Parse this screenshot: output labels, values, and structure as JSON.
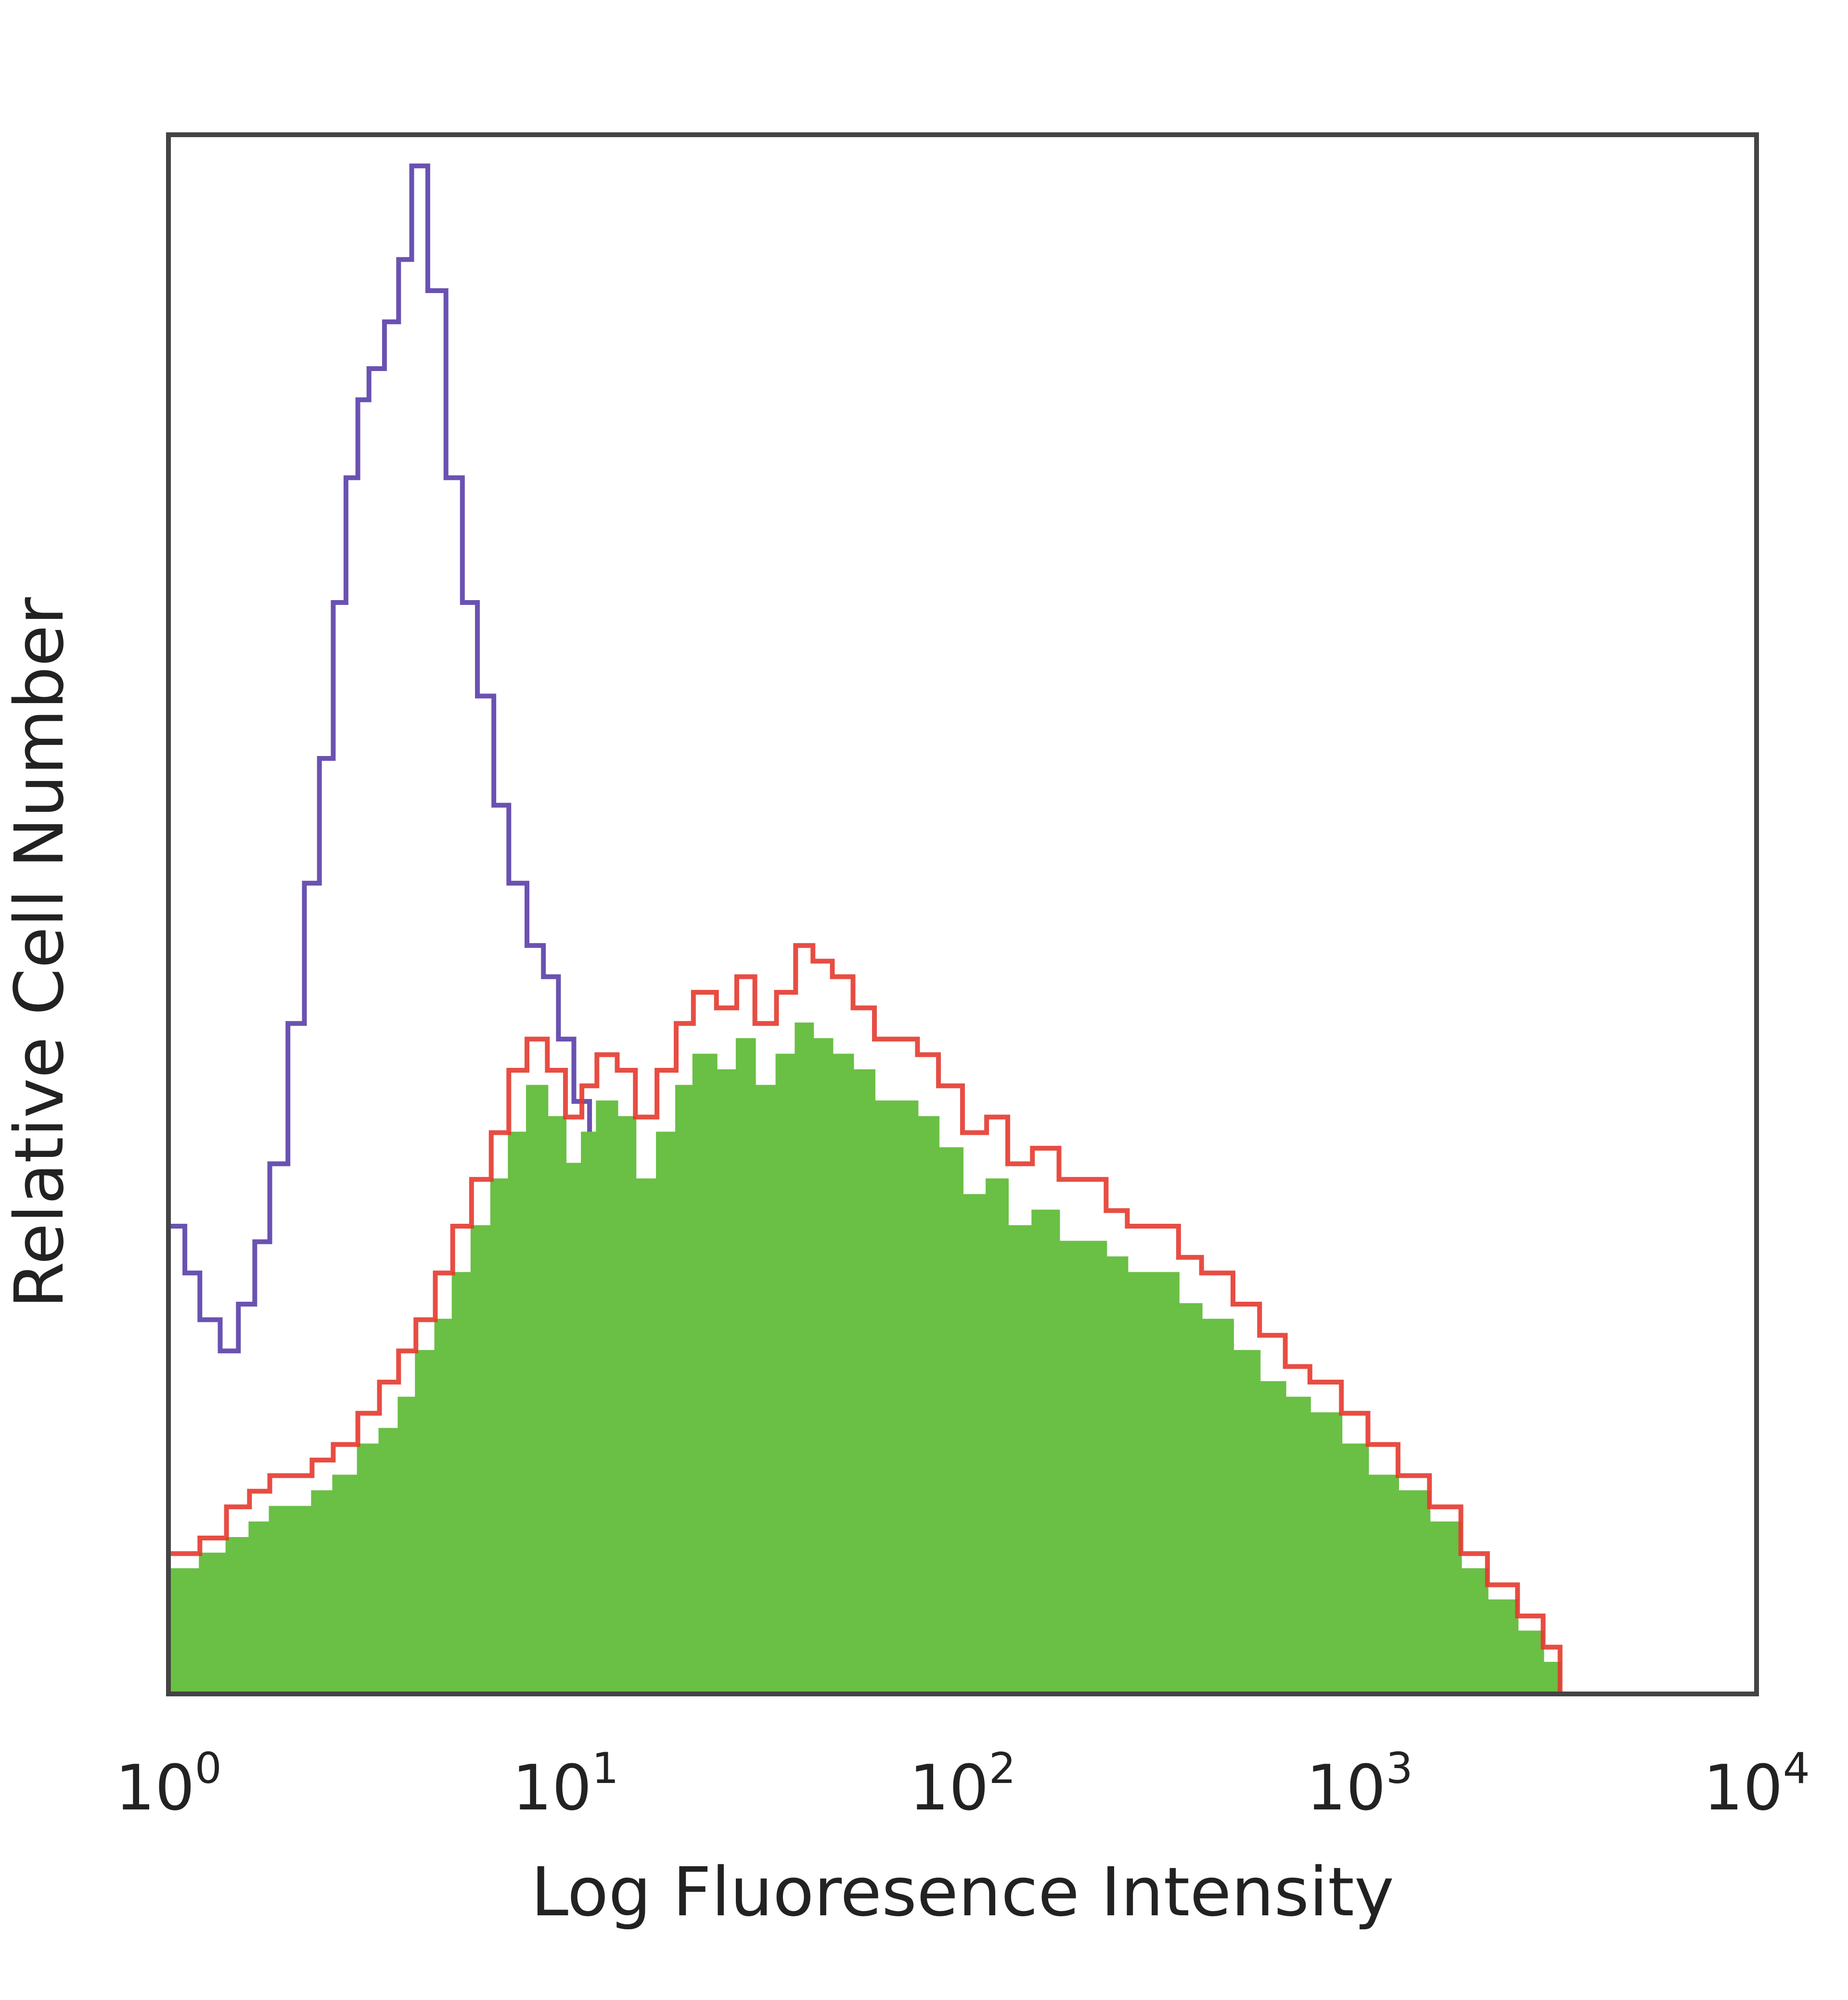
{
  "chart_data": {
    "type": "area",
    "xlabel": "Log Fluoresence Intensity",
    "ylabel": "Relative Cell Number",
    "x_scale": "log",
    "xlim": [
      1,
      10000
    ],
    "ylim": [
      0,
      100
    ],
    "y_ticks_shown": false,
    "grid": false,
    "x_ticks": [
      {
        "value": 1,
        "base": "10",
        "exp": "0"
      },
      {
        "value": 10,
        "base": "10",
        "exp": "1"
      },
      {
        "value": 100,
        "base": "10",
        "exp": "2"
      },
      {
        "value": 1000,
        "base": "10",
        "exp": "3"
      },
      {
        "value": 10000,
        "base": "10",
        "exp": "4"
      }
    ],
    "series": [
      {
        "style": "outline",
        "color": "#5a3fa8",
        "x": [
          1,
          1.1,
          1.2,
          1.35,
          1.5,
          1.65,
          1.8,
          2.0,
          2.2,
          2.4,
          2.6,
          2.8,
          3.0,
          3.2,
          3.5,
          3.8,
          4.1,
          4.5,
          5.0,
          5.5,
          6.0,
          6.6,
          7.2,
          8.0,
          8.8,
          9.6,
          10.5,
          11.5,
          12.6,
          14.0,
          15.5,
          17,
          19,
          21,
          23,
          25,
          28,
          31,
          34,
          38,
          42,
          47,
          52,
          58,
          65,
          75,
          90,
          110,
          140,
          180,
          250,
          320,
          350,
          500,
          1000,
          2000,
          2800,
          3000
        ],
        "values": [
          30,
          27,
          24,
          22,
          25,
          29,
          34,
          43,
          52,
          60,
          70,
          78,
          83,
          85,
          88,
          92,
          98,
          90,
          78,
          70,
          64,
          57,
          52,
          48,
          46,
          42,
          38,
          33,
          30,
          28,
          24,
          21,
          17,
          15,
          13,
          11,
          9,
          7,
          7,
          6,
          5,
          4,
          3,
          2,
          1,
          1,
          1,
          1,
          1,
          0.5,
          0,
          1.5,
          0,
          0,
          0,
          0,
          1.5,
          0
        ]
      },
      {
        "style": "filled",
        "color": "#6abf45",
        "x": [
          1,
          1.2,
          1.4,
          1.6,
          1.8,
          2.0,
          2.3,
          2.6,
          3.0,
          3.4,
          3.8,
          4.2,
          4.7,
          5.2,
          5.8,
          6.5,
          7.2,
          8.0,
          9.0,
          10,
          11,
          12,
          13.5,
          15,
          17,
          19,
          21,
          24,
          27,
          30,
          34,
          38,
          42,
          47,
          53,
          60,
          68,
          77,
          87,
          100,
          115,
          130,
          150,
          175,
          200,
          230,
          260,
          300,
          350,
          400,
          480,
          560,
          650,
          750,
          900,
          1050,
          1250,
          1500,
          1800,
          2100,
          2500,
          2900,
          3200
        ],
        "values": [
          8,
          9,
          10,
          11,
          12,
          12,
          13,
          14,
          16,
          17,
          19,
          22,
          24,
          27,
          30,
          33,
          36,
          39,
          37,
          34,
          36,
          38,
          37,
          33,
          36,
          39,
          41,
          40,
          42,
          39,
          41,
          43,
          42,
          41,
          40,
          38,
          38,
          37,
          35,
          32,
          33,
          30,
          31,
          29,
          29,
          28,
          27,
          27,
          25,
          24,
          22,
          20,
          19,
          18,
          16,
          14,
          13,
          11,
          8,
          6,
          4,
          2,
          0
        ]
      },
      {
        "style": "outline",
        "color": "#e43a2f",
        "x": [
          1,
          1.2,
          1.4,
          1.6,
          1.8,
          2.0,
          2.3,
          2.6,
          3.0,
          3.4,
          3.8,
          4.2,
          4.7,
          5.2,
          5.8,
          6.5,
          7.2,
          8.0,
          9.0,
          10,
          11,
          12,
          13.5,
          15,
          17,
          19,
          21,
          24,
          27,
          30,
          34,
          38,
          42,
          47,
          53,
          60,
          68,
          77,
          87,
          100,
          115,
          130,
          150,
          175,
          200,
          230,
          260,
          300,
          350,
          400,
          480,
          560,
          650,
          750,
          900,
          1050,
          1250,
          1500,
          1800,
          2100,
          2500,
          2900,
          3200
        ],
        "values": [
          9,
          10,
          12,
          13,
          14,
          14,
          15,
          16,
          18,
          20,
          22,
          24,
          27,
          30,
          33,
          36,
          40,
          42,
          40,
          37,
          39,
          41,
          40,
          37,
          40,
          43,
          45,
          44,
          46,
          43,
          45,
          48,
          47,
          46,
          44,
          42,
          42,
          41,
          39,
          36,
          37,
          34,
          35,
          33,
          33,
          31,
          30,
          30,
          28,
          27,
          25,
          23,
          21,
          20,
          18,
          16,
          14,
          12,
          9,
          7,
          5,
          3,
          0
        ]
      }
    ]
  }
}
